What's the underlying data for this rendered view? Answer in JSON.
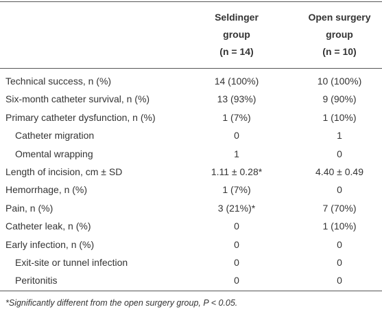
{
  "table": {
    "header": [
      null,
      [
        "Seldinger",
        "group",
        "(n = 14)"
      ],
      [
        "Open surgery",
        "group",
        "(n = 10)"
      ]
    ],
    "rows": [
      [
        "Technical success, n (%)",
        "14 (100%)",
        "10 (100%)"
      ],
      [
        "Six-month catheter survival, n (%)",
        "13 (93%)",
        "9 (90%)"
      ],
      [
        "Primary catheter dysfunction, n (%)",
        "1 (7%)",
        "1 (10%)"
      ],
      [
        "Catheter migration",
        "0",
        "1"
      ],
      [
        "Omental wrapping",
        "1",
        "0"
      ],
      [
        "Length of incision, cm ± SD",
        "1.11 ± 0.28*",
        "4.40 ± 0.49"
      ],
      [
        "Hemorrhage, n (%)",
        "1 (7%)",
        "0"
      ],
      [
        "Pain, n (%)",
        "3 (21%)*",
        "7 (70%)"
      ],
      [
        "Catheter leak, n (%)",
        "0",
        "1 (10%)"
      ],
      [
        "Early infection, n (%)",
        "0",
        "0"
      ],
      [
        "Exit-site or tunnel infection",
        "0",
        "0"
      ],
      [
        "Peritonitis",
        "0",
        "0"
      ]
    ],
    "indented": [
      false,
      false,
      false,
      true,
      true,
      false,
      false,
      false,
      false,
      false,
      true,
      true
    ]
  },
  "footnote": "*Significantly different from the open surgery group, P < 0.05."
}
